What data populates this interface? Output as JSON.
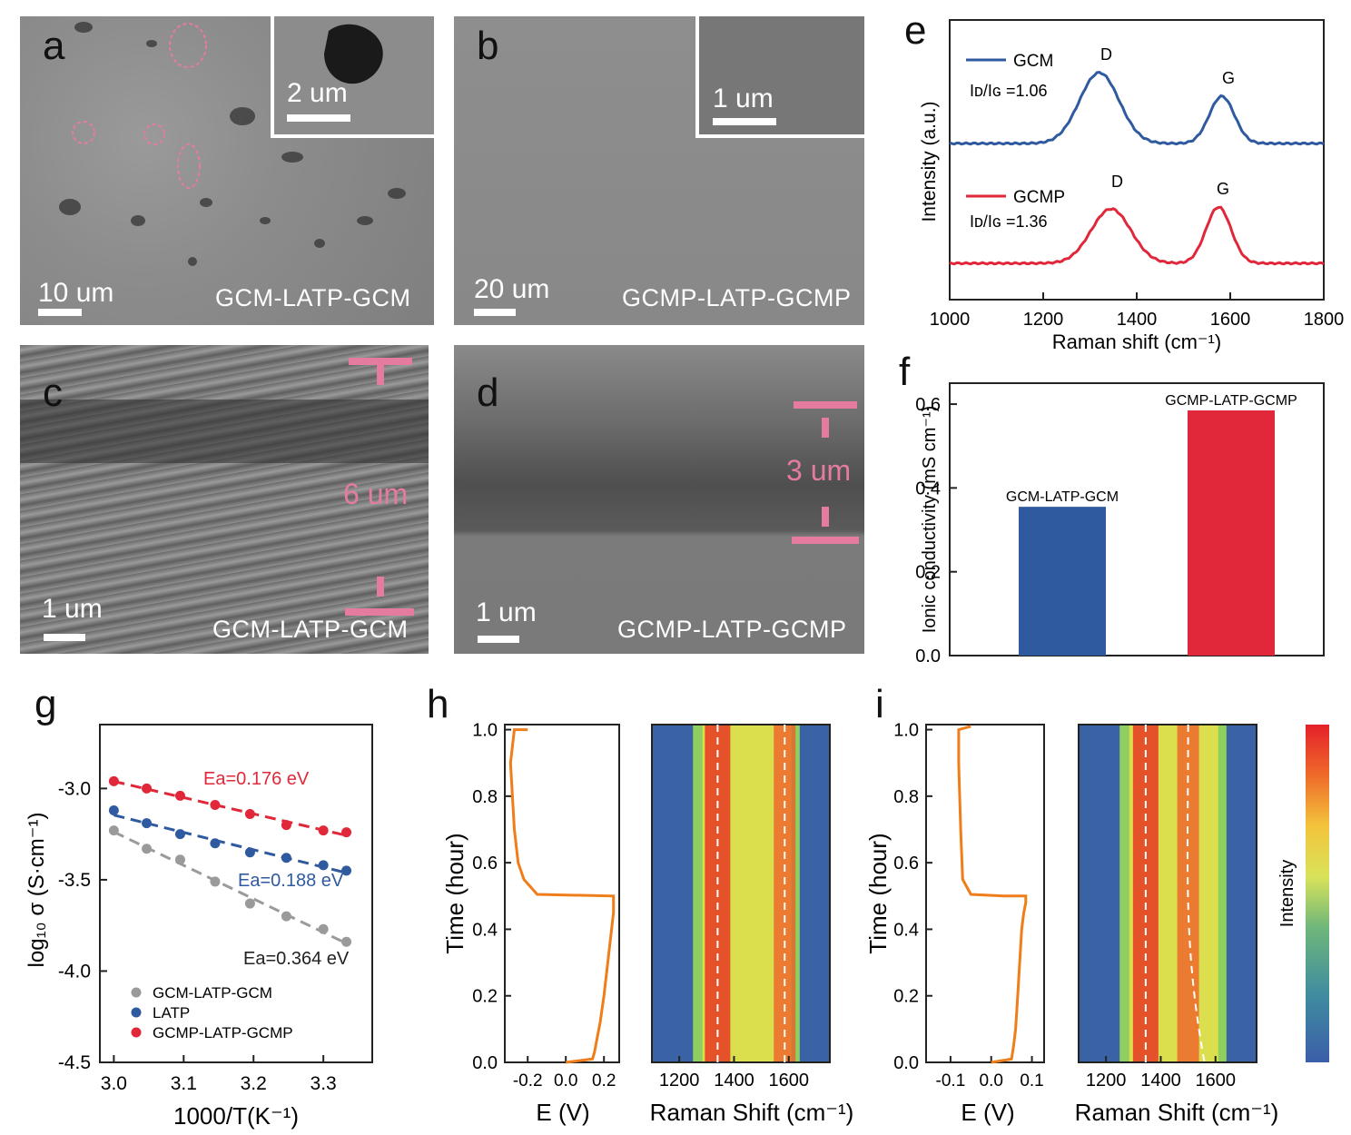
{
  "panels": {
    "a": {
      "letter": "a",
      "scale": "10 um",
      "inset_scale": "2 um",
      "sample": "GCM-LATP-GCM"
    },
    "b": {
      "letter": "b",
      "scale": "20 um",
      "inset_scale": "1 um",
      "sample": "GCMP-LATP-GCMP"
    },
    "c": {
      "letter": "c",
      "scale": "1 um",
      "thickness": "6 um",
      "sample": "GCM-LATP-GCM"
    },
    "d": {
      "letter": "d",
      "scale": "1 um",
      "thickness": "3 um",
      "sample": "GCMP-LATP-GCMP"
    },
    "e": {
      "letter": "e"
    },
    "f": {
      "letter": "f"
    },
    "g": {
      "letter": "g"
    },
    "h": {
      "letter": "h"
    },
    "i": {
      "letter": "i"
    }
  },
  "colors": {
    "blue": "#2f5a9f",
    "red": "#e0283a",
    "gray": "#9a9a9a",
    "orange": "#ef7d1a",
    "pink": "#e57ca0"
  },
  "chart_data": [
    {
      "id": "e",
      "type": "line",
      "xlabel": "Raman shift (cm⁻¹)",
      "ylabel": "Intensity (a.u.)",
      "xlim": [
        1000,
        1800
      ],
      "xticks": [
        1000,
        1200,
        1400,
        1600,
        1800
      ],
      "series": [
        {
          "name": "GCM",
          "ratio_label": "Iᴅ/Iɢ =1.06",
          "ratio_value": 1.06,
          "color": "#2f5a9f",
          "peaks": [
            {
              "label": "D",
              "x": 1320
            },
            {
              "label": "G",
              "x": 1582
            }
          ]
        },
        {
          "name": "GCMP",
          "ratio_label": "Iᴅ/Iɢ =1.36",
          "ratio_value": 1.36,
          "color": "#e0283a",
          "peaks": [
            {
              "label": "D",
              "x": 1345
            },
            {
              "label": "G",
              "x": 1575
            }
          ]
        }
      ]
    },
    {
      "id": "f",
      "type": "bar",
      "ylabel": "Ionic conductivity (mS cm⁻¹)",
      "ylim": [
        0,
        0.65
      ],
      "yticks": [
        0.0,
        0.2,
        0.4,
        0.6
      ],
      "categories": [
        "GCM-LATP-GCM",
        "GCMP-LATP-GCMP"
      ],
      "values": [
        0.355,
        0.585
      ],
      "colors": [
        "#2f5a9f",
        "#e0283a"
      ]
    },
    {
      "id": "g",
      "type": "scatter",
      "xlabel": "1000/T(K⁻¹)",
      "ylabel": "log₁₀ σ (S·cm⁻¹)",
      "xlim": [
        2.98,
        3.37
      ],
      "ylim": [
        -4.5,
        -2.65
      ],
      "xticks": [
        3.0,
        3.1,
        3.2,
        3.3
      ],
      "yticks": [
        -3.0,
        -3.5,
        -4.0,
        -4.5
      ],
      "series": [
        {
          "name": "GCM-LATP-GCM",
          "color": "#9a9a9a",
          "ea_label": "Ea=0.364 eV",
          "x": [
            3.0,
            3.047,
            3.095,
            3.145,
            3.195,
            3.247,
            3.3,
            3.333
          ],
          "y": [
            -3.23,
            -3.33,
            -3.39,
            -3.51,
            -3.63,
            -3.7,
            -3.77,
            -3.84
          ]
        },
        {
          "name": "LATP",
          "color": "#2f5a9f",
          "ea_label": "Ea=0.188 eV",
          "x": [
            3.0,
            3.047,
            3.095,
            3.145,
            3.195,
            3.247,
            3.3,
            3.333
          ],
          "y": [
            -3.12,
            -3.19,
            -3.25,
            -3.3,
            -3.35,
            -3.38,
            -3.42,
            -3.45
          ]
        },
        {
          "name": "GCMP-LATP-GCMP",
          "color": "#e0283a",
          "ea_label": "Ea=0.176 eV",
          "x": [
            3.0,
            3.047,
            3.095,
            3.145,
            3.195,
            3.247,
            3.3,
            3.333
          ],
          "y": [
            -2.96,
            -3.0,
            -3.04,
            -3.09,
            -3.14,
            -3.2,
            -3.23,
            -3.24
          ]
        }
      ]
    },
    {
      "id": "h",
      "type": "line",
      "left": {
        "xlabel": "E (V)",
        "ylabel": "Time (hour)",
        "xticks": [
          "-0.2",
          "0.0",
          "0.2"
        ],
        "yticks": [
          "0.0",
          "0.2",
          "0.4",
          "0.6",
          "0.8",
          "1.0"
        ],
        "x": [
          0.0,
          0.14,
          0.15,
          0.16,
          0.18,
          0.2,
          0.22,
          0.25,
          0.25,
          -0.15,
          -0.22,
          -0.25,
          -0.27,
          -0.28,
          -0.29,
          -0.27,
          -0.2
        ],
        "y": [
          0.0,
          0.01,
          0.03,
          0.06,
          0.12,
          0.2,
          0.3,
          0.45,
          0.5,
          0.505,
          0.55,
          0.6,
          0.7,
          0.8,
          0.9,
          1.0,
          1.0
        ]
      },
      "right": {
        "type": "heatmap",
        "xlabel": "Raman Shift (cm⁻¹)",
        "xticks": [
          1200,
          1400,
          1600
        ]
      }
    },
    {
      "id": "i",
      "type": "line",
      "left": {
        "xlabel": "E (V)",
        "ylabel": "Time (hour)",
        "xticks": [
          "-0.1",
          "0.0",
          "0.1"
        ],
        "yticks": [
          "0.0",
          "0.2",
          "0.4",
          "0.6",
          "0.8",
          "1.0"
        ],
        "x": [
          0.0,
          0.05,
          0.055,
          0.06,
          0.065,
          0.07,
          0.075,
          0.08,
          0.085,
          0.085,
          0.03,
          -0.05,
          -0.07,
          -0.075,
          -0.08,
          -0.08,
          -0.05
        ],
        "y": [
          0.0,
          0.01,
          0.05,
          0.1,
          0.2,
          0.3,
          0.4,
          0.45,
          0.48,
          0.5,
          0.5,
          0.505,
          0.55,
          0.7,
          0.9,
          1.0,
          1.01
        ]
      },
      "right": {
        "type": "heatmap",
        "xlabel": "Raman Shift (cm⁻¹)",
        "xticks": [
          1200,
          1400,
          1600
        ]
      },
      "colorbar": {
        "label": "Intensity"
      }
    }
  ]
}
